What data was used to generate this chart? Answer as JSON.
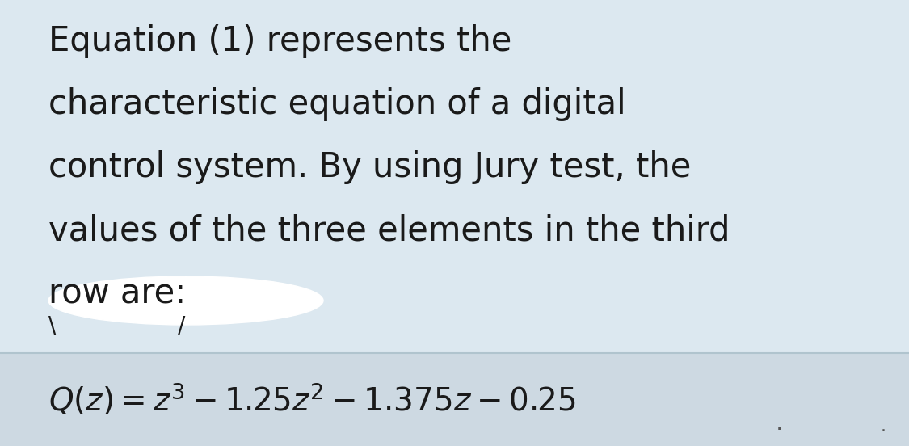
{
  "background_color": "#dce8f0",
  "text_color": "#1a1a1a",
  "paragraph_text": "Equation (1) represents the\ncharacteristic equation of a digital\ncontrol system. By using Jury test, the\nvalues of the three elements in the third\nrow are:",
  "equation_text": "$Q(z) = z^3 - 1.25z^2 - 1.375z - 0.25$",
  "paragraph_fontsize": 30,
  "equation_fontsize": 28,
  "equation_box_color": "#cdd9e2",
  "equation_box_border": "#b0c4ce",
  "figure_width": 11.25,
  "figure_height": 5.52,
  "blob_color": "white",
  "blob_alpha": 1.0,
  "tick_color": "#1a1a1a",
  "dot_color": "#555555"
}
